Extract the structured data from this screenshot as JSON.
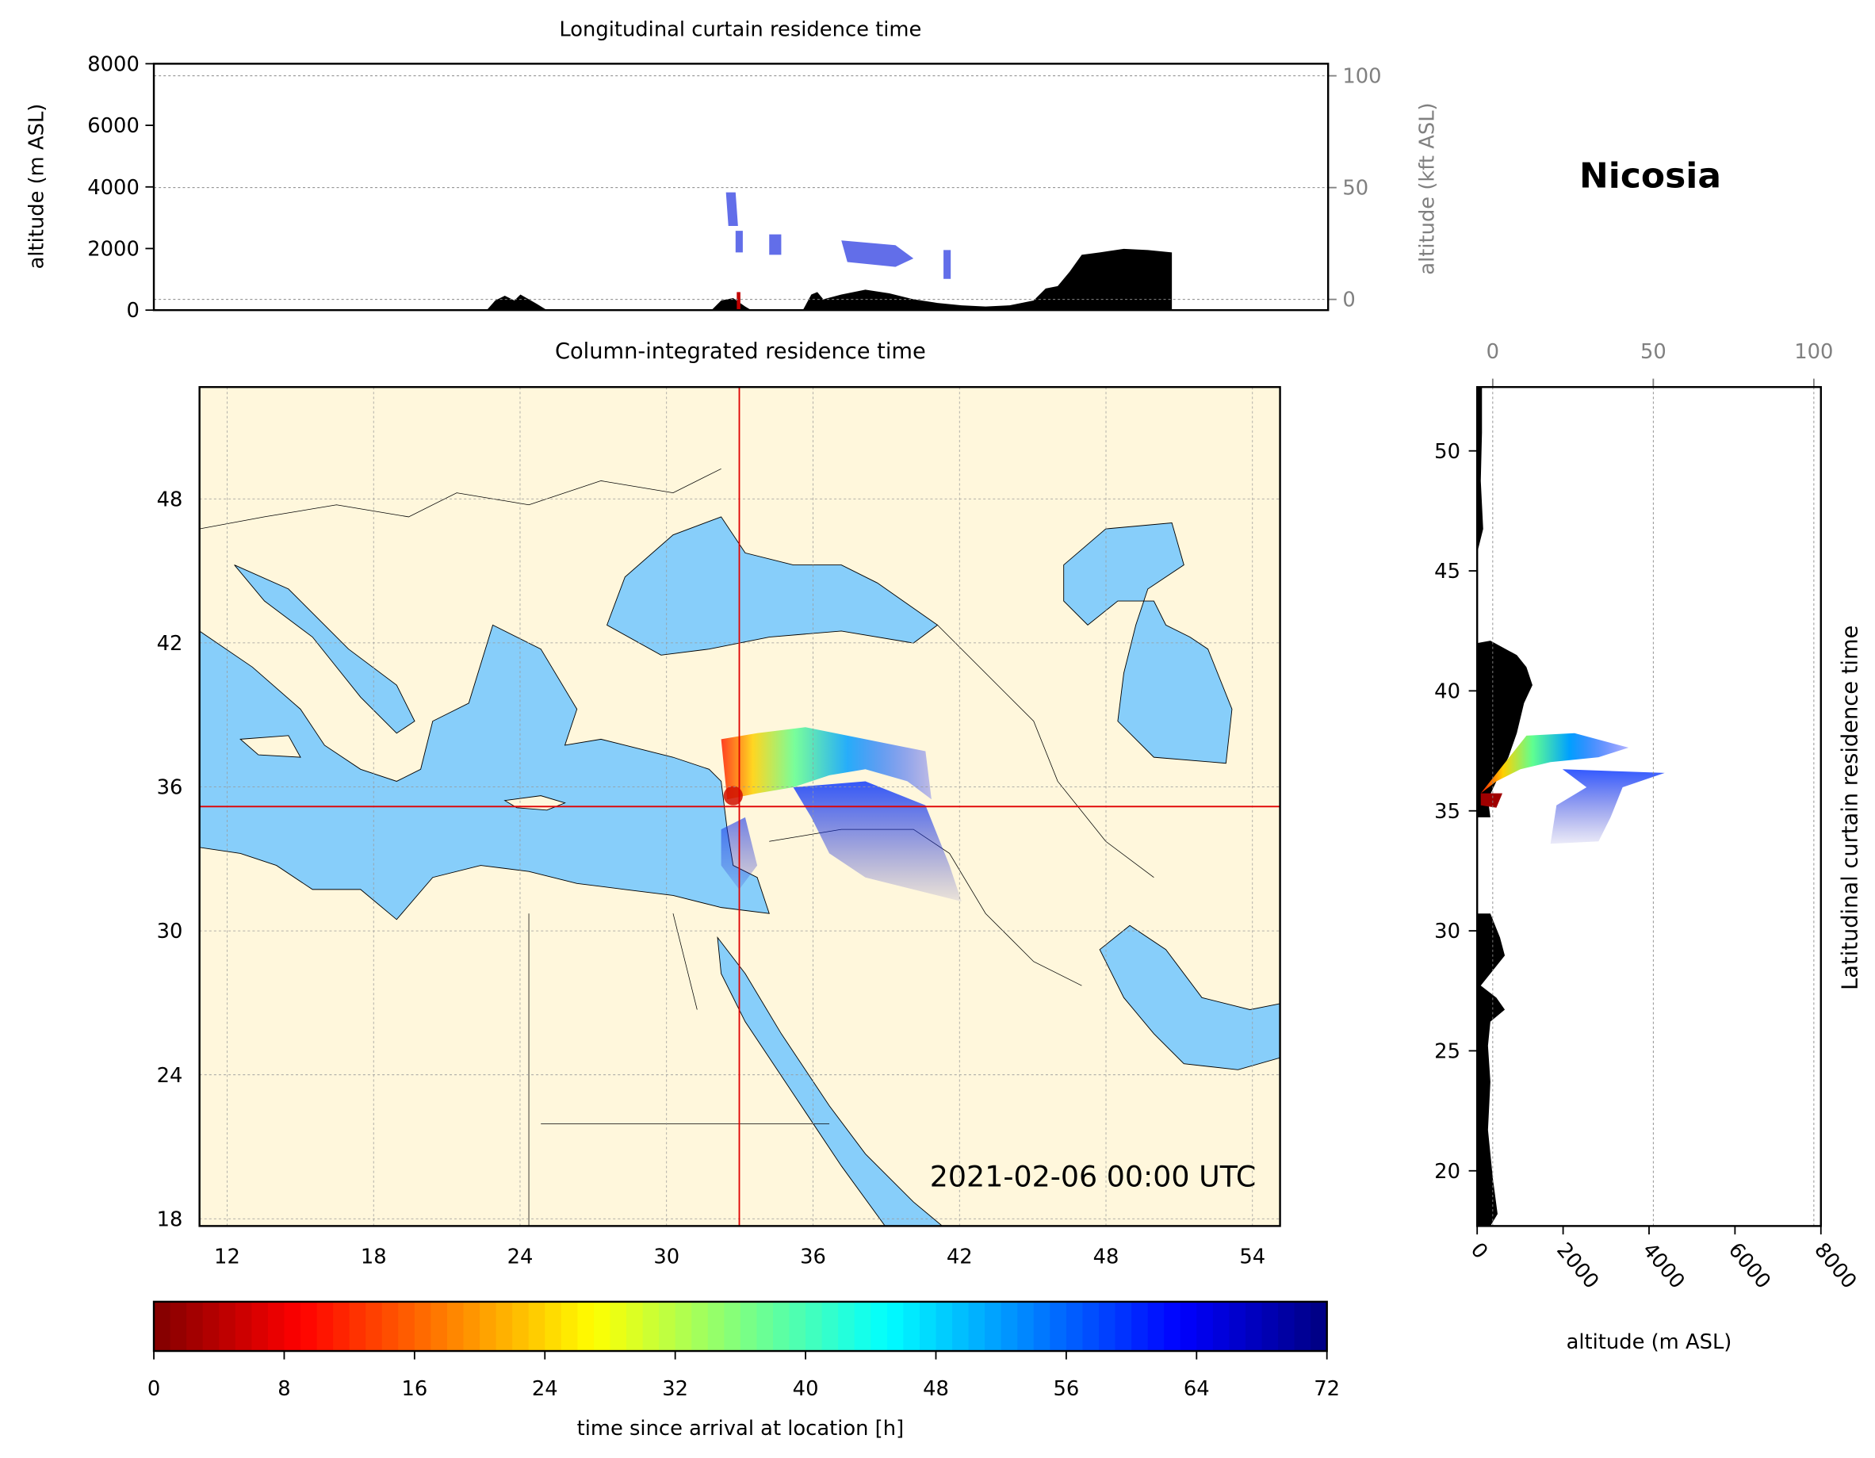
{
  "figure_title": "Nicosia",
  "chart_data": [
    {
      "type": "curtain",
      "title": "Longitudinal curtain residence time",
      "y_label": "altitude (m ASL)",
      "ylim": [
        0,
        8000
      ],
      "yticks": [
        0,
        2000,
        4000,
        6000,
        8000
      ],
      "y2_label": "altitude (kft ASL)",
      "y2lim": [
        -4.8,
        105.4
      ],
      "y2ticks": [
        0,
        50,
        100
      ]
    },
    {
      "type": "map",
      "title": "Column-integrated residence time",
      "annotation": "2021-02-06 00:00 UTC",
      "xlim": [
        10.87,
        55.13
      ],
      "ylim": [
        17.7,
        52.66
      ],
      "xticks": [
        12,
        18,
        24,
        30,
        36,
        42,
        48,
        54
      ],
      "yticks": [
        18,
        24,
        30,
        36,
        42,
        48
      ],
      "location": [
        32.98,
        35.18
      ],
      "grid": true
    },
    {
      "type": "curtain_lat",
      "title": "Latitudinal curtain residence time",
      "x_label": "altitude (m ASL)",
      "xlim": [
        0,
        8000
      ],
      "xticks": [
        0,
        2000,
        4000,
        6000,
        8000
      ],
      "x2lim": [
        -4.85,
        102.2
      ],
      "x2ticks": [
        0,
        50,
        100
      ],
      "ylim": [
        17.7,
        52.66
      ],
      "yticks": [
        20,
        25,
        30,
        35,
        40,
        45,
        50
      ]
    },
    {
      "type": "colorbar",
      "label": "time since arrival at location [h]",
      "xlim": [
        0,
        72
      ],
      "xticks": [
        0,
        8,
        16,
        24,
        32,
        40,
        48,
        56,
        64,
        72
      ]
    }
  ]
}
